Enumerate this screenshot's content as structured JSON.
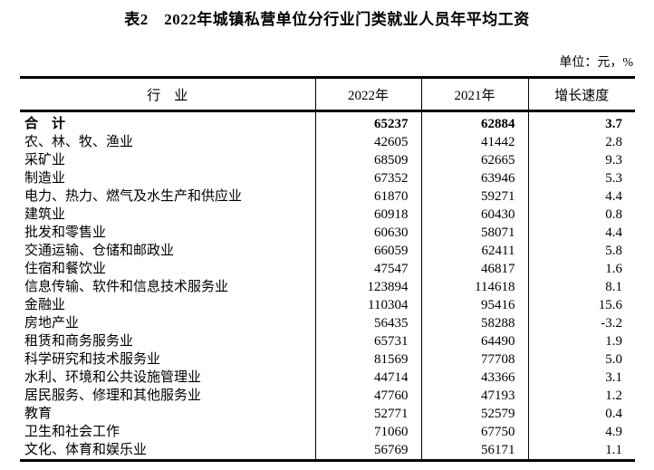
{
  "title": "表2　2022年城镇私营单位分行业门类就业人员年平均工资",
  "unit_label": "单位：元，%",
  "colors": {
    "text": "#000000",
    "border": "#000000",
    "background": "#ffffff"
  },
  "table": {
    "columns": [
      "行　业",
      "2022年",
      "2021年",
      "增长速度"
    ],
    "rows": [
      {
        "industry": "合　计",
        "y2022": "65237",
        "y2021": "62884",
        "growth": "3.7",
        "bold": true
      },
      {
        "industry": "农、林、牧、渔业",
        "y2022": "42605",
        "y2021": "41442",
        "growth": "2.8",
        "bold": false
      },
      {
        "industry": "采矿业",
        "y2022": "68509",
        "y2021": "62665",
        "growth": "9.3",
        "bold": false
      },
      {
        "industry": "制造业",
        "y2022": "67352",
        "y2021": "63946",
        "growth": "5.3",
        "bold": false
      },
      {
        "industry": "电力、热力、燃气及水生产和供应业",
        "y2022": "61870",
        "y2021": "59271",
        "growth": "4.4",
        "bold": false
      },
      {
        "industry": "建筑业",
        "y2022": "60918",
        "y2021": "60430",
        "growth": "0.8",
        "bold": false
      },
      {
        "industry": "批发和零售业",
        "y2022": "60630",
        "y2021": "58071",
        "growth": "4.4",
        "bold": false
      },
      {
        "industry": "交通运输、仓储和邮政业",
        "y2022": "66059",
        "y2021": "62411",
        "growth": "5.8",
        "bold": false
      },
      {
        "industry": "住宿和餐饮业",
        "y2022": "47547",
        "y2021": "46817",
        "growth": "1.6",
        "bold": false
      },
      {
        "industry": "信息传输、软件和信息技术服务业",
        "y2022": "123894",
        "y2021": "114618",
        "growth": "8.1",
        "bold": false
      },
      {
        "industry": "金融业",
        "y2022": "110304",
        "y2021": "95416",
        "growth": "15.6",
        "bold": false
      },
      {
        "industry": "房地产业",
        "y2022": "56435",
        "y2021": "58288",
        "growth": "-3.2",
        "bold": false
      },
      {
        "industry": "租赁和商务服务业",
        "y2022": "65731",
        "y2021": "64490",
        "growth": "1.9",
        "bold": false
      },
      {
        "industry": "科学研究和技术服务业",
        "y2022": "81569",
        "y2021": "77708",
        "growth": "5.0",
        "bold": false
      },
      {
        "industry": "水利、环境和公共设施管理业",
        "y2022": "44714",
        "y2021": "43366",
        "growth": "3.1",
        "bold": false
      },
      {
        "industry": "居民服务、修理和其他服务业",
        "y2022": "47760",
        "y2021": "47193",
        "growth": "1.2",
        "bold": false
      },
      {
        "industry": "教育",
        "y2022": "52771",
        "y2021": "52579",
        "growth": "0.4",
        "bold": false
      },
      {
        "industry": "卫生和社会工作",
        "y2022": "71060",
        "y2021": "67750",
        "growth": "4.9",
        "bold": false
      },
      {
        "industry": "文化、体育和娱乐业",
        "y2022": "56769",
        "y2021": "56171",
        "growth": "1.1",
        "bold": false
      }
    ]
  }
}
